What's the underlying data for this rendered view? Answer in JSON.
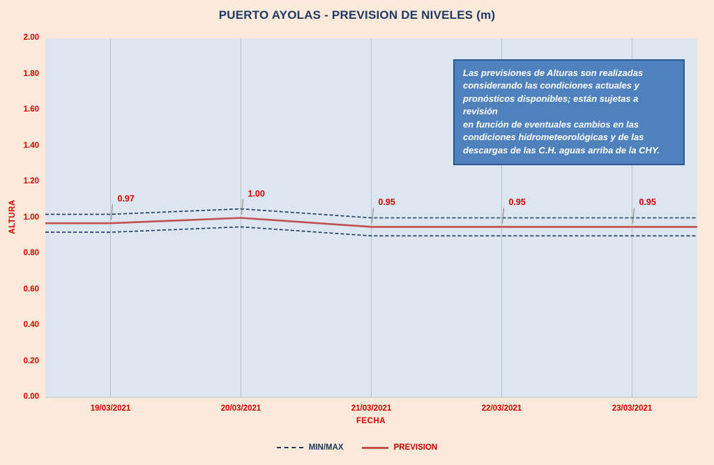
{
  "title": "PUERTO AYOLAS - PREVISION DE NIVELES (m)",
  "annotation": {
    "lines": [
      "Las previsiones de Alturas son realizadas",
      "considerando las condiciones actuales y",
      "pronósticos disponibles;  están sujetas a revisión",
      "en función de eventuales cambios en las",
      "condiciones hidrometeorológicas y de las",
      "descargas de las C.H. aguas arriba de la CHY."
    ]
  },
  "chart_data": {
    "type": "line",
    "title": "PUERTO AYOLAS - PREVISION DE NIVELES (m)",
    "xlabel": "FECHA",
    "ylabel": "ALTURA",
    "ylim": [
      0.0,
      2.0
    ],
    "ytick_step": 0.2,
    "yticks": [
      "2.00",
      "1.80",
      "1.60",
      "1.40",
      "1.20",
      "1.00",
      "0.80",
      "0.60",
      "0.40",
      "0.20",
      "0.00"
    ],
    "categories": [
      "19/03/2021",
      "20/03/2021",
      "21/03/2021",
      "22/03/2021",
      "23/03/2021"
    ],
    "series": [
      {
        "name": "MAX",
        "legend": "MIN/MAX",
        "role": "max",
        "style": "dashed",
        "color": "#17375e",
        "values": [
          1.02,
          1.05,
          1.0,
          1.0,
          1.0
        ]
      },
      {
        "name": "PREVISION",
        "legend": "PREVISION",
        "role": "prevision",
        "style": "solid",
        "color": "#c0504d",
        "values": [
          0.97,
          1.0,
          0.95,
          0.95,
          0.95
        ]
      },
      {
        "name": "MIN",
        "legend": "MIN/MAX",
        "role": "min",
        "style": "dashed",
        "color": "#17375e",
        "values": [
          0.92,
          0.95,
          0.9,
          0.9,
          0.9
        ]
      }
    ],
    "data_labels": [
      "0.97",
      "1.00",
      "0.95",
      "0.95",
      "0.95"
    ],
    "grid": "vertical-only",
    "legend_position": "bottom-center"
  },
  "legend": {
    "minmax_label": "MIN/MAX",
    "prevision_label": "PREVISION"
  },
  "colors": {
    "page_bg": "#fbe9d9",
    "plot_bg": "#dce6f1",
    "title": "#1f3864",
    "axis_text": "#d60000",
    "prevision_line": "#c0504d",
    "minmax_line": "#17375e",
    "gridline": "#bfbfbf",
    "leader_line": "#7f7f7f",
    "annotation_bg": "#4f81bd",
    "annotation_border": "#2f5597",
    "annotation_text": "#ffffff"
  }
}
